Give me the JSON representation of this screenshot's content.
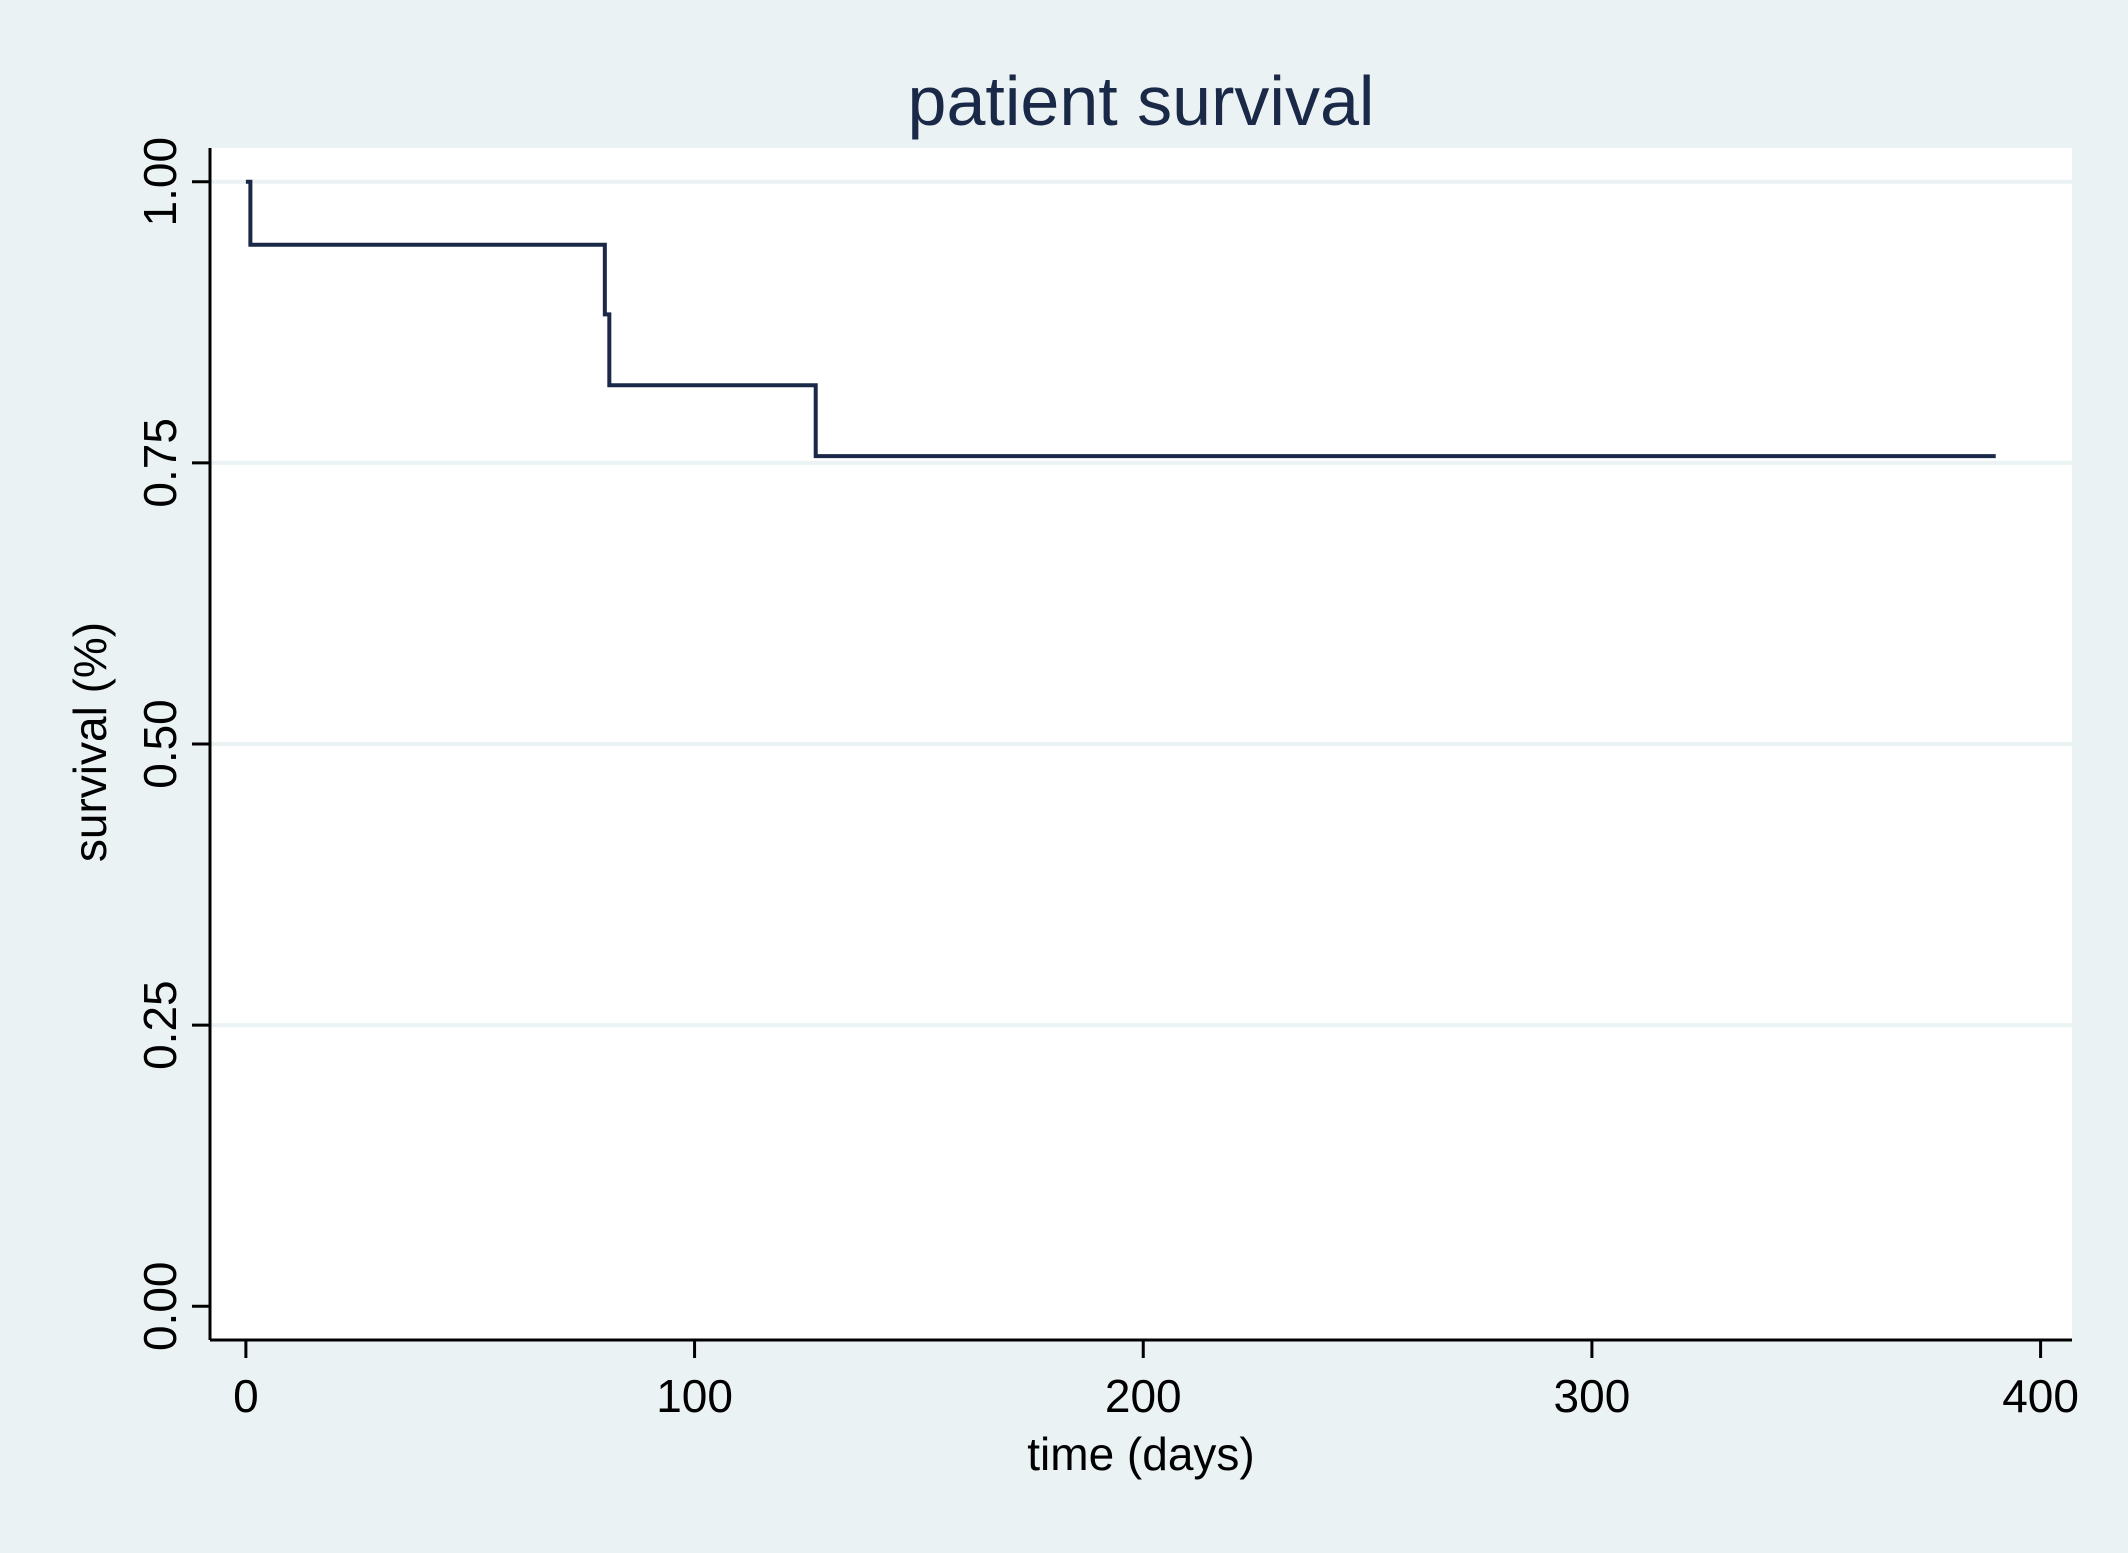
{
  "chart_data": {
    "type": "line",
    "title": "patient survival",
    "xlabel": "time (days)",
    "ylabel": "survival (%)",
    "xlim": [
      -8,
      407
    ],
    "ylim": [
      -0.03,
      1.03
    ],
    "xticks": [
      0,
      100,
      200,
      300,
      400
    ],
    "xtick_labels": [
      "0",
      "100",
      "200",
      "300",
      "400"
    ],
    "yticks": [
      0,
      0.25,
      0.5,
      0.75,
      1
    ],
    "ytick_labels": [
      "0.00",
      "0.25",
      "0.50",
      "0.75",
      "1.00"
    ],
    "grid": "horizontal",
    "legend": "none",
    "step": true,
    "series": [
      {
        "x": [
          0,
          1,
          80,
          81,
          127,
          390
        ],
        "y": [
          1.0,
          0.944,
          0.882,
          0.819,
          0.756,
          0.756
        ]
      }
    ],
    "colors": {
      "background": "#EAF2F3",
      "plot_area": "#FFFFFF",
      "line": "#1A2947",
      "grid": "#EAF2F3",
      "axis": "#000000"
    }
  }
}
